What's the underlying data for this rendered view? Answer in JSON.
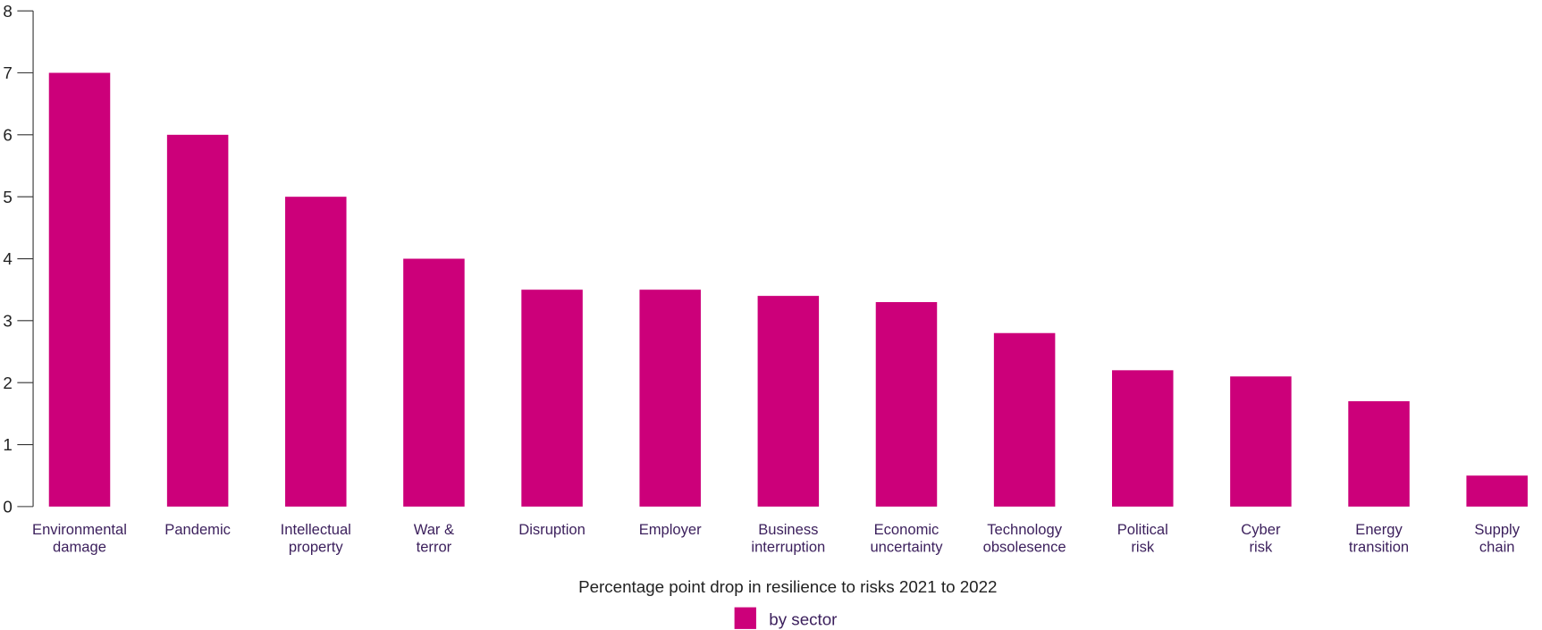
{
  "chart_data": {
    "type": "bar",
    "xlabel": "Percentage point drop in resilience to risks 2021 to 2022",
    "categories": [
      "Environmental\ndamage",
      "Pandemic",
      "Intellectual\nproperty",
      "War &\nterror",
      "Disruption",
      "Employer",
      "Business\ninterruption",
      "Economic\nuncertainty",
      "Technology\nobsolesence",
      "Political\nrisk",
      "Cyber\nrisk",
      "Energy\ntransition",
      "Supply\nchain"
    ],
    "series": [
      {
        "name": "by sector",
        "color": "#cc007a",
        "values": [
          7,
          6,
          5,
          4,
          3.5,
          3.5,
          3.4,
          3.3,
          2.8,
          2.2,
          2.1,
          1.7,
          0.5
        ]
      }
    ],
    "ylim": [
      0,
      8
    ],
    "yticks": [
      0,
      1,
      2,
      3,
      4,
      5,
      6,
      7,
      8
    ],
    "legend": "bottom"
  }
}
